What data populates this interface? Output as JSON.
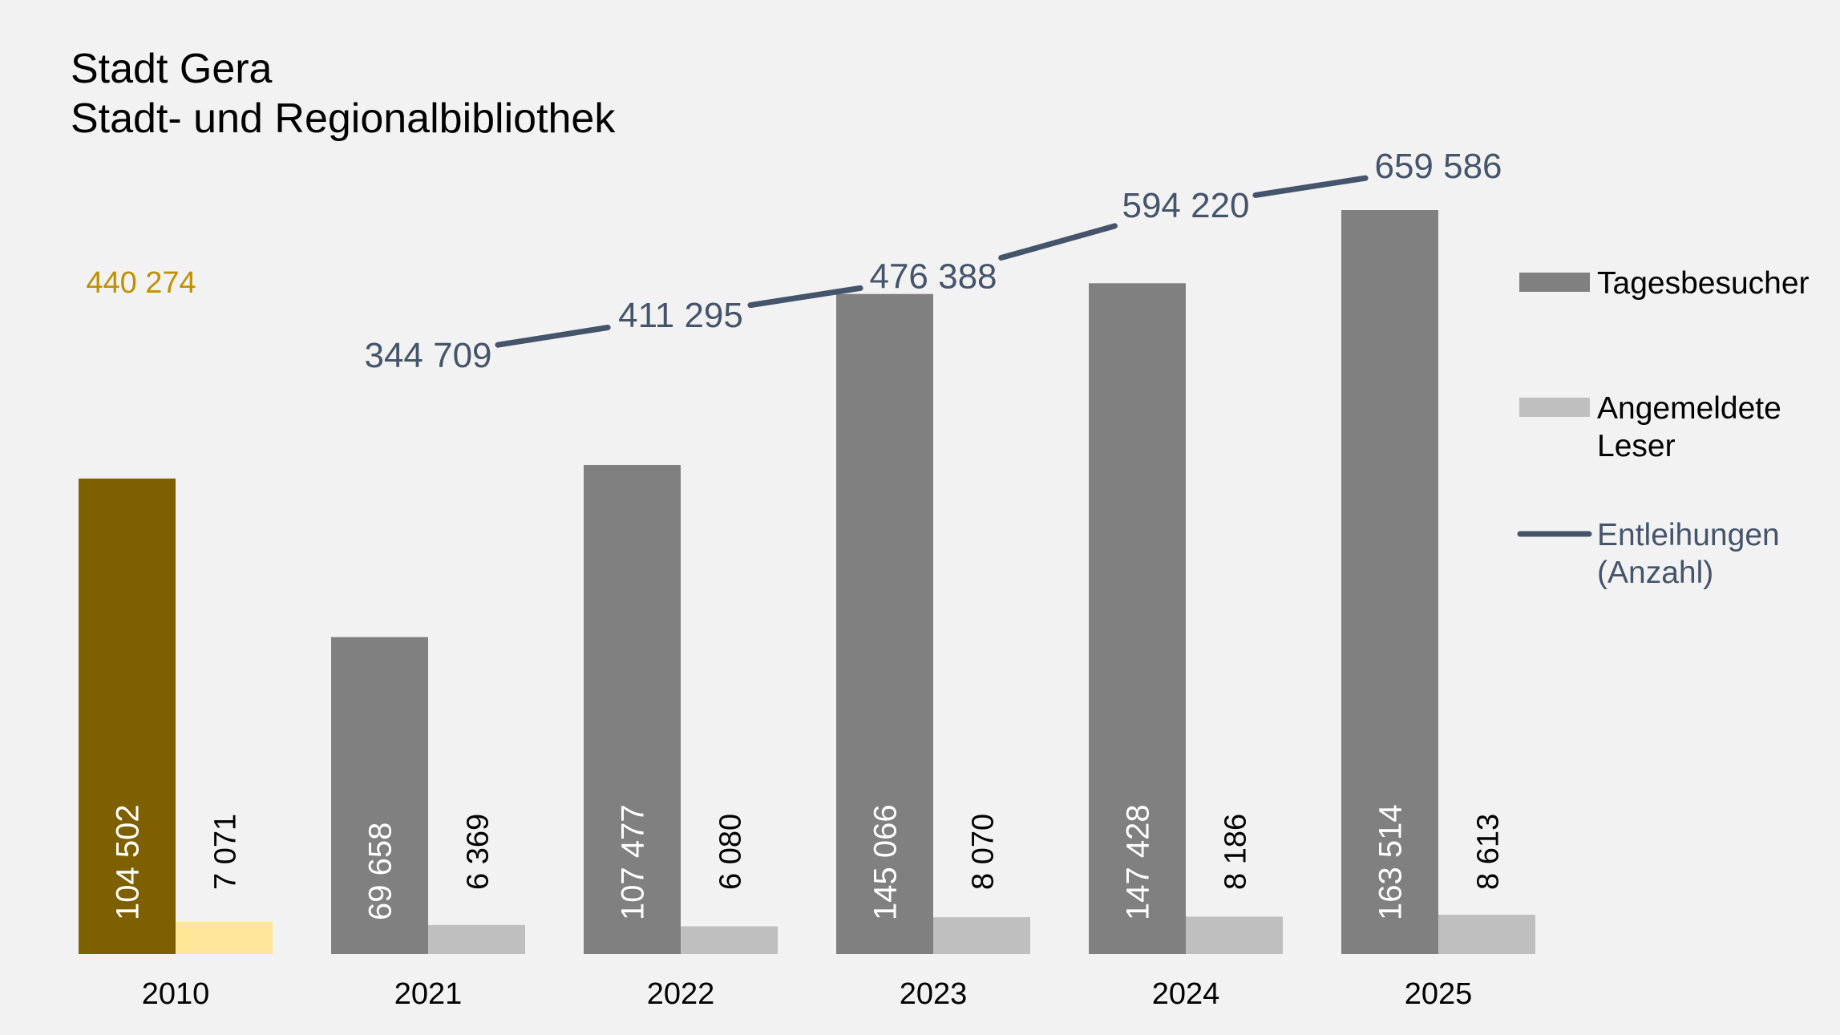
{
  "title_lines": [
    "Stadt Gera",
    "Stadt- und Regionalbibliothek"
  ],
  "colors": {
    "background": "#f2f2f2",
    "tagesbesucher": "#808080",
    "angemeldete_leser": "#bfbfbf",
    "entleihungen": "#44546a",
    "highlight_2010_tagesbesucher": "#7f6000",
    "highlight_2010_leser": "#ffe699",
    "highlight_2010_entleihungen": "#bf9000"
  },
  "chart_data": {
    "type": "bar",
    "title": "Stadt Gera Stadt- und Regionalbibliothek",
    "categories": [
      "2010",
      "2021",
      "2022",
      "2023",
      "2024",
      "2025"
    ],
    "series": [
      {
        "name": "Tagesbesucher",
        "type": "bar",
        "values": [
          104502,
          69658,
          107477,
          145066,
          147428,
          163514
        ],
        "labels": [
          "104 502",
          "69 658",
          "107 477",
          "145 066",
          "147 428",
          "163 514"
        ]
      },
      {
        "name": "Angemeldete Leser",
        "type": "bar",
        "values": [
          7071,
          6369,
          6080,
          8070,
          8186,
          8613
        ],
        "labels": [
          "7 071",
          "6 369",
          "6 080",
          "8 070",
          "8 186",
          "8 613"
        ]
      },
      {
        "name": "Entleihungen (Anzahl)",
        "type": "line",
        "values": [
          440274,
          344709,
          411295,
          476388,
          594220,
          659586
        ],
        "labels": [
          "440 274",
          "344 709",
          "411 295",
          "476 388",
          "594 220",
          "659 586"
        ],
        "line_starts_at": "2021"
      }
    ],
    "legend": {
      "placement": "right",
      "entries": [
        {
          "key": "tagesbesucher",
          "lines": [
            "Tagesbesucher"
          ]
        },
        {
          "key": "angemeldete_leser",
          "lines": [
            "Angemeldete",
            "Leser"
          ]
        },
        {
          "key": "entleihungen",
          "lines": [
            "Entleihungen",
            "(Anzahl)"
          ]
        }
      ]
    },
    "xlabel": "",
    "ylabel": "",
    "grid": false,
    "highlight_category": "2010"
  }
}
